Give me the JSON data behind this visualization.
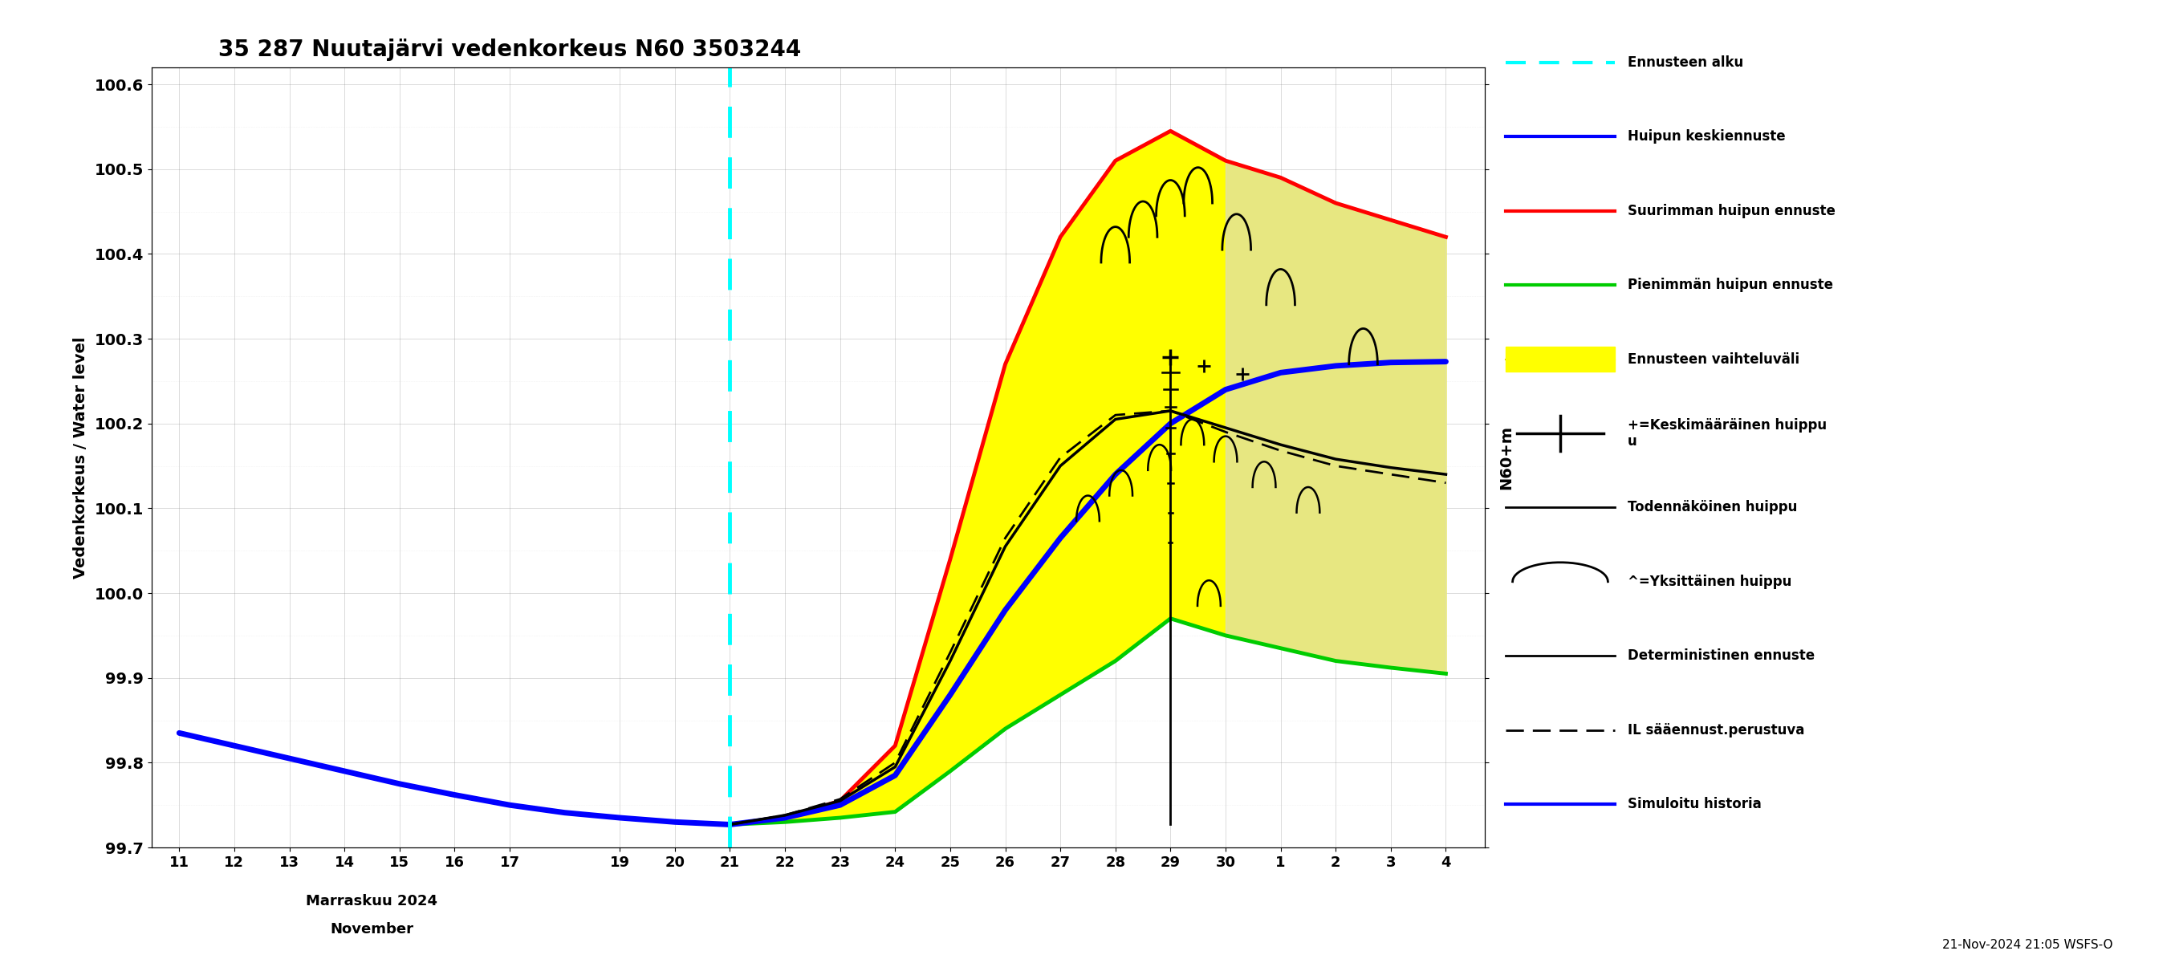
{
  "title": "35 287 Nuutajärvi vedenkorkeus N60 3503244",
  "ylabel_left": "Vedenkorkeus / Water level",
  "ylabel_right": "N60+m",
  "footnote": "21-Nov-2024 21:05 WSFS-O",
  "ylim": [
    99.7,
    100.62
  ],
  "yticks": [
    99.7,
    99.8,
    99.9,
    100.0,
    100.1,
    100.2,
    100.3,
    100.4,
    100.5,
    100.6
  ],
  "forecast_start_x": 21,
  "colors": {
    "cyan_dashed": "#00FFFF",
    "red": "#FF0000",
    "blue": "#0000FF",
    "green": "#00CC00",
    "yellow_fill": "#FFFF00",
    "light_gray_fill": "#D8D8D8",
    "black": "#000000",
    "background": "#FFFFFF",
    "grid": "#888888",
    "grid_minor": "#CCCCCC"
  },
  "hist_x": [
    11,
    12,
    13,
    14,
    15,
    16,
    17,
    18,
    19,
    20,
    21
  ],
  "hist_y": [
    99.835,
    99.82,
    99.805,
    99.79,
    99.775,
    99.762,
    99.75,
    99.741,
    99.735,
    99.73,
    99.727
  ],
  "blue_x": [
    21,
    22,
    23,
    24,
    25,
    26,
    27,
    28,
    29,
    30,
    31,
    32,
    33,
    34
  ],
  "blue_y": [
    99.727,
    99.735,
    99.75,
    99.785,
    99.88,
    99.98,
    100.065,
    100.14,
    100.2,
    100.24,
    100.26,
    100.268,
    100.272,
    100.273
  ],
  "red_x": [
    21,
    22,
    23,
    24,
    25,
    26,
    27,
    28,
    29,
    30,
    31,
    32,
    33,
    34
  ],
  "red_y": [
    99.727,
    99.735,
    99.755,
    99.82,
    100.04,
    100.27,
    100.42,
    100.51,
    100.545,
    100.51,
    100.49,
    100.46,
    100.44,
    100.42
  ],
  "green_x": [
    21,
    22,
    23,
    24,
    25,
    26,
    27,
    28,
    29,
    30,
    31,
    32,
    33,
    34
  ],
  "green_y": [
    99.727,
    99.73,
    99.735,
    99.742,
    99.79,
    99.84,
    99.88,
    99.92,
    99.97,
    99.95,
    99.935,
    99.92,
    99.912,
    99.905
  ],
  "det_x": [
    21,
    22,
    23,
    24,
    25,
    26,
    27,
    28,
    29,
    30,
    31,
    32,
    33,
    34
  ],
  "det_y": [
    99.727,
    99.738,
    99.755,
    99.795,
    99.92,
    100.055,
    100.15,
    100.205,
    100.215,
    100.195,
    100.175,
    100.158,
    100.148,
    100.14
  ],
  "il_x": [
    21,
    22,
    23,
    24,
    25,
    26,
    27,
    28,
    29,
    30,
    31,
    32,
    33,
    34
  ],
  "il_y": [
    99.727,
    99.738,
    99.757,
    99.8,
    99.93,
    100.065,
    100.16,
    100.21,
    100.215,
    100.19,
    100.168,
    100.15,
    100.14,
    100.13
  ],
  "gray_fill_x": [
    30,
    31,
    32,
    33,
    34
  ],
  "gray_fill_upper": [
    100.51,
    100.49,
    100.46,
    100.44,
    100.42
  ],
  "gray_fill_lower": [
    99.95,
    99.935,
    99.92,
    99.912,
    99.905
  ],
  "xticks": [
    11,
    12,
    13,
    14,
    15,
    16,
    17,
    19,
    20,
    21,
    22,
    23,
    24,
    25,
    26,
    27,
    28,
    29,
    30,
    31,
    32,
    33,
    34
  ],
  "xtick_labels": [
    "11",
    "12",
    "13",
    "14",
    "15",
    "16",
    "17",
    "19",
    "20",
    "21",
    "22",
    "23",
    "24",
    "25",
    "26",
    "27",
    "28",
    "29",
    "30",
    "1",
    "2",
    "3",
    "4"
  ],
  "xlim": [
    10.5,
    34.7
  ],
  "legend": [
    {
      "label": "Ennusteen alku",
      "color": "#00FFFF",
      "style": "dashed",
      "lw": 3
    },
    {
      "label": "Huipun keskiennuste",
      "color": "#0000FF",
      "style": "solid",
      "lw": 3
    },
    {
      "label": "Suurimman huipun ennuste",
      "color": "#FF0000",
      "style": "solid",
      "lw": 3
    },
    {
      "label": "Pienimmän huipun ennuste",
      "color": "#00CC00",
      "style": "solid",
      "lw": 3
    },
    {
      "label": "Ennusteen vaihteluväli",
      "color": "#FFFF00",
      "style": "patch",
      "lw": 10
    },
    {
      "label": "+=Keskimääräinen huippu\nu",
      "color": "#000000",
      "style": "cross",
      "lw": 2
    },
    {
      "label": "Todennäköinen huippu",
      "color": "#000000",
      "style": "solid",
      "lw": 2
    },
    {
      "label": "^=Yksittäinen huippu",
      "color": "#000000",
      "style": "arc",
      "lw": 2
    },
    {
      "label": "Deterministinen ennuste",
      "color": "#000000",
      "style": "solid",
      "lw": 2
    },
    {
      "label": "IL sääennust.perustuva",
      "color": "#000000",
      "style": "dashed2",
      "lw": 2
    },
    {
      "label": "Simuloitu historia",
      "color": "#0000FF",
      "style": "solid",
      "lw": 3
    }
  ]
}
